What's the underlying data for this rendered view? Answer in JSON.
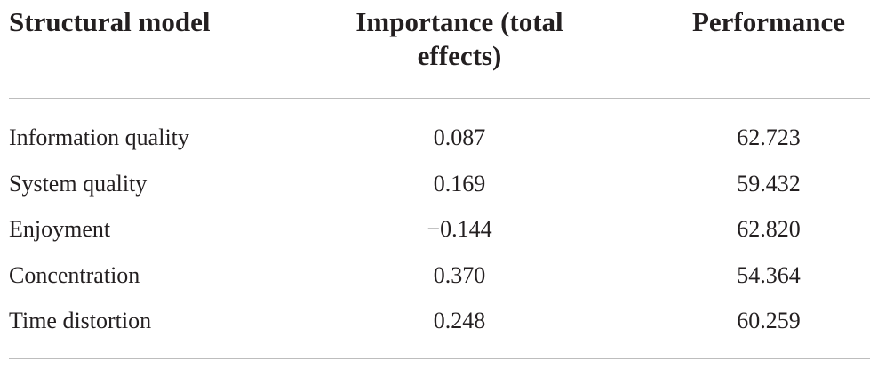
{
  "table": {
    "header": [
      "Structural model",
      "Importance (total effects)",
      "Performance"
    ],
    "rows": [
      [
        "Information quality",
        "0.087",
        "62.723"
      ],
      [
        "System quality",
        "0.169",
        "59.432"
      ],
      [
        "Enjoyment",
        "−0.144",
        "62.820"
      ],
      [
        "Concentration",
        "0.370",
        "54.364"
      ],
      [
        "Time distortion",
        "0.248",
        "60.259"
      ]
    ]
  }
}
